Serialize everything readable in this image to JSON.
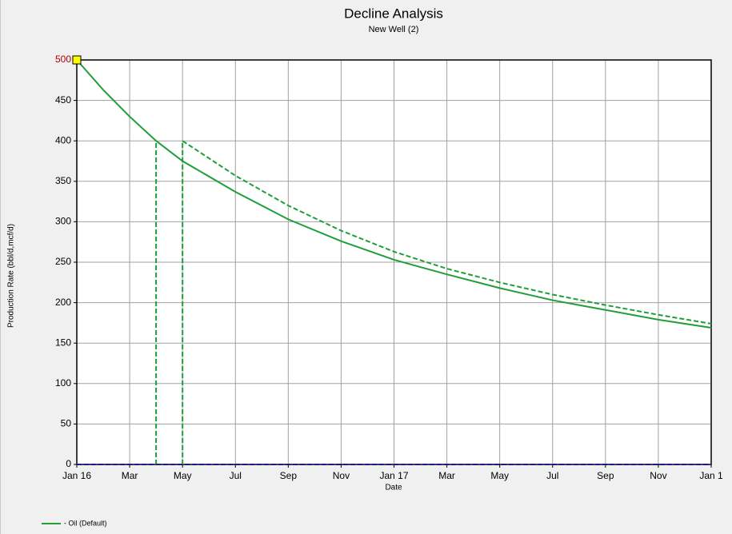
{
  "chart_data": {
    "type": "line",
    "title": "Decline Analysis",
    "subtitle": "New Well (2)",
    "x_label": "Date",
    "y_label": "Production Rate (bbl/d,mcf/d)",
    "xlim": [
      0,
      24
    ],
    "ylim": [
      0,
      500
    ],
    "xticks": [
      {
        "value": 0,
        "label": "Jan 16"
      },
      {
        "value": 2,
        "label": "Mar"
      },
      {
        "value": 4,
        "label": "May"
      },
      {
        "value": 6,
        "label": "Jul"
      },
      {
        "value": 8,
        "label": "Sep"
      },
      {
        "value": 10,
        "label": "Nov"
      },
      {
        "value": 12,
        "label": "Jan 17"
      },
      {
        "value": 14,
        "label": "Mar"
      },
      {
        "value": 16,
        "label": "May"
      },
      {
        "value": 18,
        "label": "Jul"
      },
      {
        "value": 20,
        "label": "Sep"
      },
      {
        "value": 22,
        "label": "Nov"
      },
      {
        "value": 24,
        "label": "Jan 1"
      }
    ],
    "yticks": [
      0,
      50,
      100,
      150,
      200,
      250,
      300,
      350,
      400,
      450,
      500
    ],
    "grid": true,
    "series": [
      {
        "name": "- Oil (Default)",
        "color": "#1f9e3a",
        "style": "solid",
        "x": [
          0,
          1,
          2,
          3,
          4,
          6,
          8,
          10,
          12,
          14,
          16,
          18,
          20,
          22,
          24
        ],
        "values": [
          500,
          463,
          430,
          400,
          375,
          337,
          303,
          276,
          253,
          235,
          218,
          203,
          191,
          179,
          169
        ]
      },
      {
        "color": "#1f9e3a",
        "style": "dashed",
        "x": [
          3,
          3
        ],
        "values": [
          0,
          400
        ]
      },
      {
        "color": "#1f9e3a",
        "style": "dashed",
        "x": [
          4,
          4,
          6,
          8,
          10,
          12,
          14,
          16,
          18,
          20,
          22,
          24
        ],
        "values": [
          0,
          400,
          357,
          320,
          289,
          263,
          242,
          225,
          210,
          197,
          185,
          174
        ]
      },
      {
        "color": "#1a1a8c",
        "style": "dashed",
        "x": [
          0,
          24
        ],
        "values": [
          0,
          0
        ]
      },
      {
        "color": "#ffff00",
        "style": "marker",
        "x": [
          0
        ],
        "values": [
          500
        ]
      }
    ]
  }
}
